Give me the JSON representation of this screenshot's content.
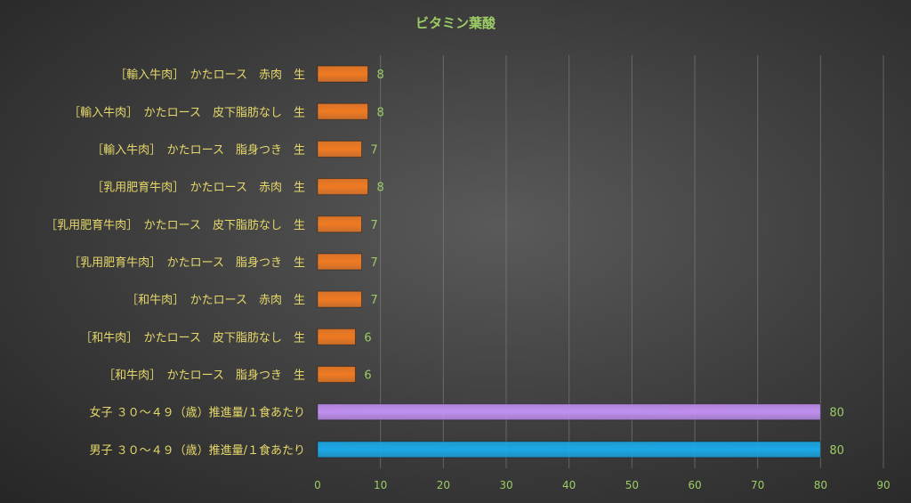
{
  "chart_data": {
    "type": "bar",
    "orientation": "horizontal",
    "title": "ビタミン葉酸",
    "categories": [
      "［輸入牛肉］　かたロース　赤肉　生",
      "［輸入牛肉］　かたロース　皮下脂肪なし　生",
      "［輸入牛肉］　かたロース　脂身つき　生",
      "［乳用肥育牛肉］　かたロース　赤肉　生",
      "［乳用肥育牛肉］　かたロース　皮下脂肪なし　生",
      "［乳用肥育牛肉］　かたロース　脂身つき　生",
      "［和牛肉］　かたロース　赤肉　生",
      "［和牛肉］　かたロース　皮下脂肪なし　生",
      "［和牛肉］　かたロース　脂身つき　生",
      "女子 ３０～４９（歳）推進量/１食あたり",
      "男子 ３０～４９（歳）推進量/１食あたり"
    ],
    "values": [
      8,
      8,
      7,
      8,
      7,
      7,
      7,
      6,
      6,
      80,
      80
    ],
    "data_labels": [
      "8",
      "8",
      "7",
      "8",
      "7",
      "7",
      "7",
      "6",
      "6",
      "80",
      "80"
    ],
    "colors": [
      "#f07a22",
      "#f07a22",
      "#f07a22",
      "#f07a22",
      "#f07a22",
      "#f07a22",
      "#f07a22",
      "#f07a22",
      "#f07a22",
      "#c08ff0",
      "#1aa9e8"
    ],
    "xlim": [
      0,
      90
    ],
    "x_ticks": [
      "0",
      "10",
      "20",
      "30",
      "40",
      "50",
      "60",
      "70",
      "80",
      "90"
    ],
    "grid": true,
    "legend": "none"
  }
}
